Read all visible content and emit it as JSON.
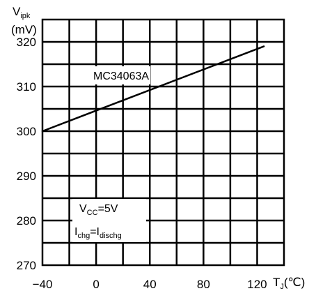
{
  "chart_data": {
    "type": "line",
    "title": "",
    "ylabel": {
      "main": "V",
      "sub": "ipk",
      "unit": "(mV)"
    },
    "xlabel": {
      "main": "T",
      "sub": "J",
      "unit": "(℃)"
    },
    "xlim": [
      -40,
      140
    ],
    "ylim": [
      270,
      325
    ],
    "x_ticks": [
      -40,
      0,
      40,
      80,
      120
    ],
    "x_tick_labels": [
      "−40",
      "0",
      "40",
      "80",
      "120"
    ],
    "y_ticks": [
      270,
      280,
      290,
      300,
      310,
      320
    ],
    "y_tick_labels": [
      "270",
      "280",
      "290",
      "300",
      "310",
      "320"
    ],
    "grid": true,
    "series": [
      {
        "name": "MC34063A",
        "x": [
          -40,
          125
        ],
        "y": [
          300,
          319
        ]
      }
    ],
    "annotations": {
      "vcc": {
        "main": "V",
        "sub": "CC",
        "rest": "=5V"
      },
      "current": {
        "main1": "I",
        "sub1": "chg",
        "eq": "=I",
        "sub2": "dischg"
      }
    },
    "colors": {
      "line": "#000000",
      "grid": "#000000",
      "background": "#ffffff"
    }
  }
}
